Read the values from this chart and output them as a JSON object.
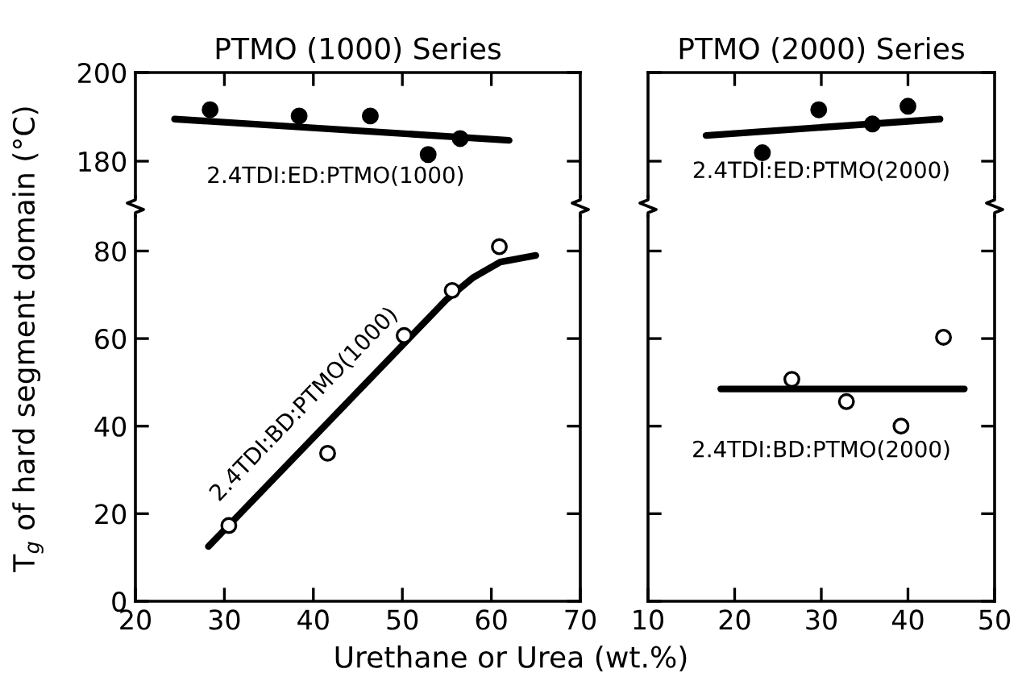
{
  "chart_data": [
    {
      "type": "scatter",
      "title": "PTMO (1000) Series",
      "xlim": [
        20,
        70
      ],
      "xticks": [
        30,
        40,
        50,
        60
      ],
      "ylim": [
        172,
        200
      ],
      "yticks": [
        180,
        200
      ],
      "tick_labels": "y",
      "grid": false,
      "marker": "circle",
      "line_style": "solid",
      "series": [
        {
          "color": "#000000",
          "x": [
            28.4,
            38.4,
            46.4,
            52.9,
            56.5
          ],
          "values": [
            191.6,
            190.2,
            190.2,
            181.5,
            185.1
          ]
        },
        {
          "type": "line",
          "color": "#000000",
          "x": [
            24.4,
            62
          ],
          "values": [
            189.5,
            184.7
          ],
          "marker": "none"
        }
      ],
      "annotations": [
        "2.4TDI:ED:PTMO(1000)"
      ]
    },
    {
      "type": "scatter",
      "title": "PTMO (2000) Series",
      "xlim": [
        10,
        50
      ],
      "xticks": [
        20,
        30,
        40
      ],
      "ylim": [
        172,
        200
      ],
      "yticks": [
        180,
        200
      ],
      "tick_labels": false,
      "grid": false,
      "marker": "circle",
      "line_style": "solid",
      "series": [
        {
          "color": "#000000",
          "x": [
            23.2,
            29.7,
            35.9,
            40
          ],
          "values": [
            181.9,
            191.6,
            188.4,
            192.4
          ]
        },
        {
          "type": "line",
          "color": "#000000",
          "x": [
            16.7,
            43.7
          ],
          "values": [
            185.8,
            189.5
          ],
          "marker": "none"
        }
      ],
      "annotations": [
        "2.4TDI:ED:PTMO(2000)"
      ]
    },
    {
      "type": "scatter",
      "xlabel": "Urethane or Urea (wt.%)",
      "ylabel": "T$_{g}$ of hard segment domain (°C)",
      "xlim": [
        20,
        70
      ],
      "xticks": [
        20,
        30,
        40,
        50,
        60,
        70
      ],
      "ylim": [
        0,
        88
      ],
      "yticks": [
        0,
        20,
        40,
        60,
        80
      ],
      "grid": false,
      "marker": "circle",
      "line_style": "solid",
      "series": [
        {
          "color": "#ffffff",
          "x": [
            30.5,
            41.6,
            50.2,
            55.6,
            60.9
          ],
          "values": [
            17.3,
            33.8,
            60.7,
            71,
            81
          ]
        },
        {
          "type": "line",
          "color": "#000000",
          "x": [
            28.2,
            55,
            58,
            61,
            65
          ],
          "values": [
            12.5,
            69,
            74,
            77.5,
            79
          ],
          "marker": "none"
        }
      ],
      "annotations": [
        "2.4TDI:BD:PTMO(1000)"
      ]
    },
    {
      "type": "scatter",
      "xlim": [
        10,
        50
      ],
      "xticks": [
        10,
        20,
        30,
        40,
        50
      ],
      "ylim": [
        0,
        88
      ],
      "yticks": [
        0,
        20,
        40,
        60,
        80
      ],
      "tick_labels": "x",
      "grid": false,
      "marker": "circle",
      "line_style": "solid",
      "series": [
        {
          "color": "#ffffff",
          "x": [
            26.6,
            32.9,
            39.2,
            44.1
          ],
          "values": [
            50.7,
            45.6,
            40,
            60.3
          ]
        },
        {
          "type": "line",
          "color": "#000000",
          "x": [
            18.4,
            46.5
          ],
          "values": [
            48.5,
            48.5
          ],
          "marker": "none"
        }
      ],
      "annotations": [
        "2.4TDI:BD:PTMO(2000)"
      ]
    }
  ]
}
